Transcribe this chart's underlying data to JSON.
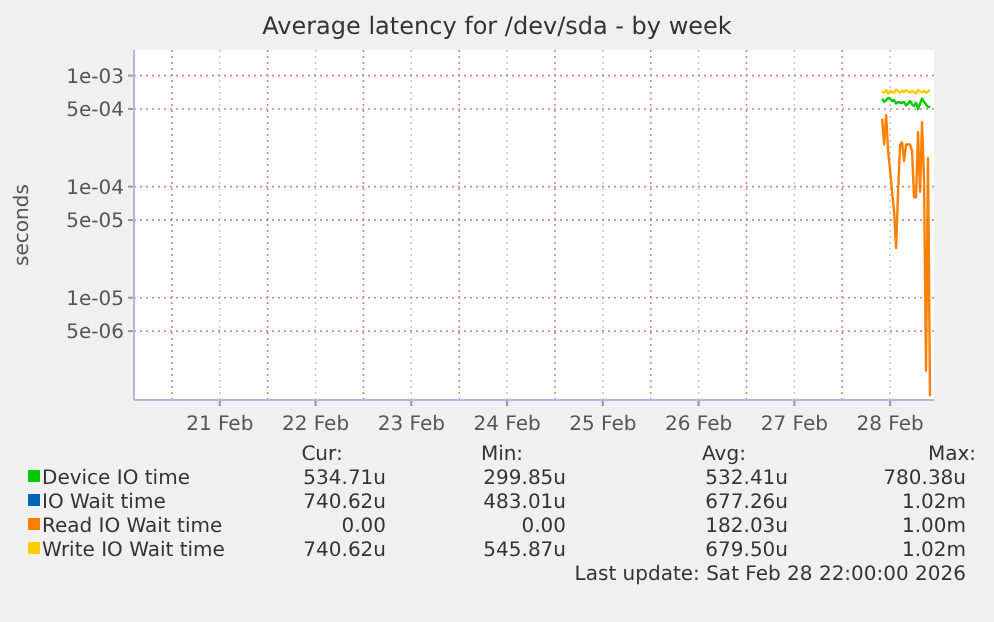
{
  "chart_data": {
    "type": "line",
    "title": "Average latency for /dev/sda - by week",
    "ylabel": "seconds",
    "log": true,
    "grid": true,
    "legend": "bottom",
    "marker": "none",
    "line_style": "solid",
    "xlim": [
      "2026-02-20T14:30",
      "2026-02-28T23:00"
    ],
    "ylim": [
      1.2e-06,
      0.0017
    ],
    "yticks": [
      {
        "value": 0.001,
        "label": "1e-03"
      },
      {
        "value": 0.0005,
        "label": "5e-04"
      },
      {
        "value": 0.0001,
        "label": "1e-04"
      },
      {
        "value": 5e-05,
        "label": "5e-05"
      },
      {
        "value": 1e-05,
        "label": "1e-05"
      },
      {
        "value": 5e-06,
        "label": "5e-06"
      }
    ],
    "xticks": [
      {
        "value": "2026-02-21T12:00",
        "label": "21 Feb"
      },
      {
        "value": "2026-02-22T12:00",
        "label": "22 Feb"
      },
      {
        "value": "2026-02-23T12:00",
        "label": "23 Feb"
      },
      {
        "value": "2026-02-24T12:00",
        "label": "24 Feb"
      },
      {
        "value": "2026-02-25T12:00",
        "label": "25 Feb"
      },
      {
        "value": "2026-02-26T12:00",
        "label": "26 Feb"
      },
      {
        "value": "2026-02-27T12:00",
        "label": "27 Feb"
      },
      {
        "value": "2026-02-28T12:00",
        "label": "28 Feb"
      }
    ],
    "x": [
      "2026-02-28T10:00",
      "2026-02-28T10:30",
      "2026-02-28T11:00",
      "2026-02-28T11:30",
      "2026-02-28T12:00",
      "2026-02-28T12:30",
      "2026-02-28T13:00",
      "2026-02-28T13:30",
      "2026-02-28T14:00",
      "2026-02-28T14:30",
      "2026-02-28T15:00",
      "2026-02-28T15:30",
      "2026-02-28T16:00",
      "2026-02-28T16:30",
      "2026-02-28T17:00",
      "2026-02-28T17:30",
      "2026-02-28T18:00",
      "2026-02-28T18:30",
      "2026-02-28T19:00",
      "2026-02-28T19:30",
      "2026-02-28T20:00",
      "2026-02-28T20:30",
      "2026-02-28T21:00",
      "2026-02-28T21:30",
      "2026-02-28T22:00"
    ],
    "series": [
      {
        "name": "Device IO time",
        "color": "#00cc00",
        "values": [
          0.00062,
          0.00058,
          0.0006,
          0.00063,
          0.00062,
          0.00059,
          0.0006,
          0.00056,
          0.00058,
          0.00057,
          0.00057,
          0.00058,
          0.00054,
          0.00056,
          0.00059,
          0.00055,
          0.00053,
          0.00057,
          0.0005,
          0.00056,
          0.00062,
          0.00058,
          0.00055,
          0.00052,
          0.00053
        ]
      },
      {
        "name": "IO Wait time",
        "color": "#0066b3",
        "values": [
          null,
          null,
          null,
          null,
          null,
          null,
          null,
          null,
          null,
          null,
          null,
          null,
          null,
          null,
          null,
          null,
          null,
          null,
          null,
          null,
          null,
          null,
          null,
          null,
          null
        ]
      },
      {
        "name": "Read IO Wait time",
        "color": "#ff8000",
        "values": [
          0.00041,
          0.00024,
          0.00044,
          0.00021,
          0.00014,
          9e-05,
          6e-05,
          2.8e-05,
          9e-05,
          0.00024,
          0.00025,
          0.00017,
          0.00024,
          0.00024,
          0.00024,
          0.00021,
          8e-05,
          8e-05,
          0.00031,
          9e-05,
          0.00038,
          0.00012,
          2.2e-06,
          0.00018,
          1.3e-06
        ]
      },
      {
        "name": "Write IO Wait time",
        "color": "#ffcc00",
        "values": [
          0.00072,
          0.0007,
          0.00074,
          0.00069,
          0.00073,
          0.00071,
          0.0007,
          0.00075,
          0.00072,
          0.0007,
          0.00073,
          0.00071,
          0.00074,
          0.00072,
          0.0007,
          0.00073,
          0.00071,
          0.00069,
          0.00074,
          0.00072,
          0.00071,
          0.00073,
          0.0007,
          0.00072,
          0.00074
        ]
      }
    ],
    "annotations": [
      "Cur:",
      "Min:",
      "Avg:",
      "Max:",
      "534.71u",
      "299.85u",
      "532.41u",
      "780.38u",
      "740.62u",
      "483.01u",
      "677.26u",
      "1.02m",
      "0.00",
      "0.00",
      "182.03u",
      "1.00m",
      "740.62u",
      "545.87u",
      "679.50u",
      "1.02m",
      "Last update: Sat Feb 28 22:00:00 2026"
    ]
  }
}
